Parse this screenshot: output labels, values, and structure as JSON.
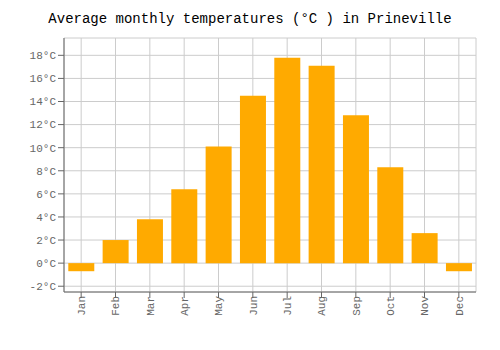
{
  "chart_data": {
    "type": "bar",
    "title": "Average monthly temperatures (°C ) in Prineville",
    "categories": [
      "Jan",
      "Feb",
      "Mar",
      "Apr",
      "May",
      "Jun",
      "Jul",
      "Aug",
      "Sep",
      "Oct",
      "Nov",
      "Dec"
    ],
    "values": [
      -0.7,
      2.0,
      3.8,
      6.4,
      10.1,
      14.5,
      17.8,
      17.1,
      12.8,
      8.3,
      2.6,
      -0.7
    ],
    "color": "#FFAA00",
    "ylim": [
      -2.5,
      19.5
    ],
    "yticks": [
      {
        "value": -2,
        "label": "-2°C"
      },
      {
        "value": 0,
        "label": "0°C"
      },
      {
        "value": 2,
        "label": "2°C"
      },
      {
        "value": 4,
        "label": "4°C"
      },
      {
        "value": 6,
        "label": "6°C"
      },
      {
        "value": 8,
        "label": "8°C"
      },
      {
        "value": 10,
        "label": "10°C"
      },
      {
        "value": 12,
        "label": "12°C"
      },
      {
        "value": 14,
        "label": "14°C"
      },
      {
        "value": 16,
        "label": "16°C"
      },
      {
        "value": 18,
        "label": "18°C"
      }
    ],
    "grid": true
  }
}
